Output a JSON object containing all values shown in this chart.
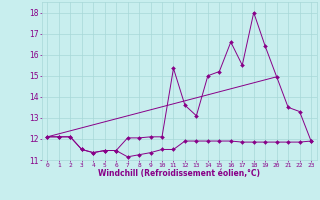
{
  "xlabel": "Windchill (Refroidissement éolien,°C)",
  "background_color": "#c8eeee",
  "grid_color": "#a8d8d8",
  "line_color": "#880088",
  "xlim": [
    -0.5,
    23.5
  ],
  "ylim": [
    11.0,
    18.5
  ],
  "xticks": [
    0,
    1,
    2,
    3,
    4,
    5,
    6,
    7,
    8,
    9,
    10,
    11,
    12,
    13,
    14,
    15,
    16,
    17,
    18,
    19,
    20,
    21,
    22,
    23
  ],
  "yticks": [
    11,
    12,
    13,
    14,
    15,
    16,
    17,
    18
  ],
  "line1_x": [
    0,
    1,
    2,
    3,
    4,
    5,
    6,
    7,
    8,
    9,
    10,
    11,
    12,
    13,
    14,
    15,
    16,
    17,
    18,
    19,
    20,
    21,
    22,
    23
  ],
  "line1_y": [
    12.1,
    12.1,
    12.1,
    11.5,
    11.35,
    11.45,
    11.45,
    11.15,
    11.25,
    11.35,
    11.5,
    11.5,
    11.9,
    11.9,
    11.9,
    11.9,
    11.9,
    11.85,
    11.85,
    11.85,
    11.85,
    11.85,
    11.85,
    11.9
  ],
  "line2_x": [
    0,
    1,
    2,
    3,
    4,
    5,
    6,
    7,
    8,
    9,
    10,
    11,
    12,
    13,
    14,
    15,
    16,
    17,
    18,
    19,
    20,
    21,
    22,
    23
  ],
  "line2_y": [
    12.1,
    12.1,
    12.1,
    11.5,
    11.35,
    11.45,
    11.45,
    12.05,
    12.05,
    12.1,
    12.1,
    15.35,
    13.6,
    13.1,
    15.0,
    15.2,
    16.6,
    15.5,
    18.0,
    16.4,
    14.95,
    13.5,
    13.3,
    11.9
  ],
  "line3_x": [
    0,
    20
  ],
  "line3_y": [
    12.1,
    14.95
  ]
}
